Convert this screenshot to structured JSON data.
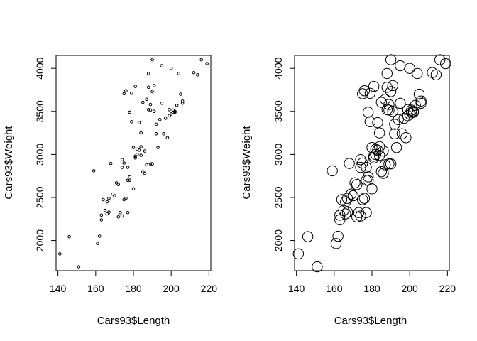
{
  "chart_data": [
    {
      "type": "scatter",
      "title": "",
      "xlabel": "Cars93$Length",
      "ylabel": "Cars93$Weight",
      "xlim": [
        139,
        221
      ],
      "ylim": [
        1650,
        4150
      ],
      "xticks": [
        140,
        160,
        180,
        200,
        220
      ],
      "yticks": [
        2000,
        2500,
        3000,
        3500,
        4000
      ],
      "grid": false,
      "legend": "none",
      "point_style": "small-open-circle",
      "color": "#000000",
      "series": [
        {
          "x": [
            141,
            146,
            151,
            159,
            161,
            162,
            163,
            163,
            164,
            165,
            166,
            166,
            167,
            167,
            168,
            169,
            170,
            171,
            172,
            172,
            173,
            174,
            174,
            174,
            175,
            175,
            175,
            176,
            176,
            177,
            177,
            177,
            178,
            178,
            178,
            179,
            179,
            180,
            180,
            181,
            181,
            181,
            182,
            182,
            183,
            183,
            184,
            184,
            184,
            185,
            185,
            186,
            186,
            187,
            187,
            188,
            188,
            188,
            189,
            189,
            189,
            190,
            190,
            190,
            191,
            191,
            192,
            192,
            193,
            194,
            195,
            195,
            196,
            197,
            198,
            199,
            199,
            200,
            200,
            201,
            201,
            202,
            202,
            203,
            204,
            205,
            206,
            206,
            212,
            214,
            216,
            219
          ],
          "y": [
            1845,
            2045,
            1695,
            2810,
            1965,
            2050,
            2240,
            2295,
            2475,
            2350,
            2310,
            2450,
            2330,
            2490,
            2895,
            2540,
            2520,
            2670,
            2650,
            2275,
            2325,
            2285,
            2850,
            2940,
            3705,
            2475,
            2900,
            3740,
            2490,
            2850,
            2325,
            2700,
            3490,
            2700,
            2740,
            3380,
            3710,
            3080,
            2600,
            3790,
            2980,
            2960,
            3000,
            3060,
            3370,
            3050,
            3090,
            2990,
            3250,
            3605,
            2800,
            2780,
            3040,
            3640,
            2880,
            3520,
            3940,
            3780,
            3515,
            2890,
            3580,
            3730,
            4100,
            2890,
            3800,
            3500,
            3240,
            3350,
            3080,
            3405,
            3595,
            4030,
            3240,
            3420,
            3195,
            3520,
            3450,
            3470,
            4000,
            3490,
            3515,
            3500,
            3490,
            3570,
            3940,
            3700,
            3595,
            3620,
            3950,
            3925,
            4100,
            4055
          ]
        }
      ]
    },
    {
      "type": "scatter",
      "title": "",
      "xlabel": "Cars93$Length",
      "ylabel": "Cars93$Weight",
      "xlim": [
        139,
        221
      ],
      "ylim": [
        1650,
        4150
      ],
      "xticks": [
        140,
        160,
        180,
        200,
        220
      ],
      "yticks": [
        2000,
        2500,
        3000,
        3500,
        4000
      ],
      "grid": false,
      "legend": "none",
      "point_style": "large-open-circle",
      "color": "#000000",
      "series": [
        {
          "x": [
            141,
            146,
            151,
            159,
            161,
            162,
            163,
            163,
            164,
            165,
            166,
            166,
            167,
            167,
            168,
            169,
            170,
            171,
            172,
            172,
            173,
            174,
            174,
            174,
            175,
            175,
            175,
            176,
            176,
            177,
            177,
            177,
            178,
            178,
            178,
            179,
            179,
            180,
            180,
            181,
            181,
            181,
            182,
            182,
            183,
            183,
            184,
            184,
            184,
            185,
            185,
            186,
            186,
            187,
            187,
            188,
            188,
            188,
            189,
            189,
            189,
            190,
            190,
            190,
            191,
            191,
            192,
            192,
            193,
            194,
            195,
            195,
            196,
            197,
            198,
            199,
            199,
            200,
            200,
            201,
            201,
            202,
            202,
            203,
            204,
            205,
            206,
            206,
            212,
            214,
            216,
            219
          ],
          "y": [
            1845,
            2045,
            1695,
            2810,
            1965,
            2050,
            2240,
            2295,
            2475,
            2350,
            2310,
            2450,
            2330,
            2490,
            2895,
            2540,
            2520,
            2670,
            2650,
            2275,
            2325,
            2285,
            2850,
            2940,
            3705,
            2475,
            2900,
            3740,
            2490,
            2850,
            2325,
            2700,
            3490,
            2700,
            2740,
            3380,
            3710,
            3080,
            2600,
            3790,
            2980,
            2960,
            3000,
            3060,
            3370,
            3050,
            3090,
            2990,
            3250,
            3605,
            2800,
            2780,
            3040,
            3640,
            2880,
            3520,
            3940,
            3780,
            3515,
            2890,
            3580,
            3730,
            4100,
            2890,
            3800,
            3500,
            3240,
            3350,
            3080,
            3405,
            3595,
            4030,
            3240,
            3420,
            3195,
            3520,
            3450,
            3470,
            4000,
            3490,
            3515,
            3500,
            3490,
            3570,
            3940,
            3700,
            3595,
            3620,
            3950,
            3925,
            4100,
            4055
          ]
        }
      ]
    }
  ]
}
